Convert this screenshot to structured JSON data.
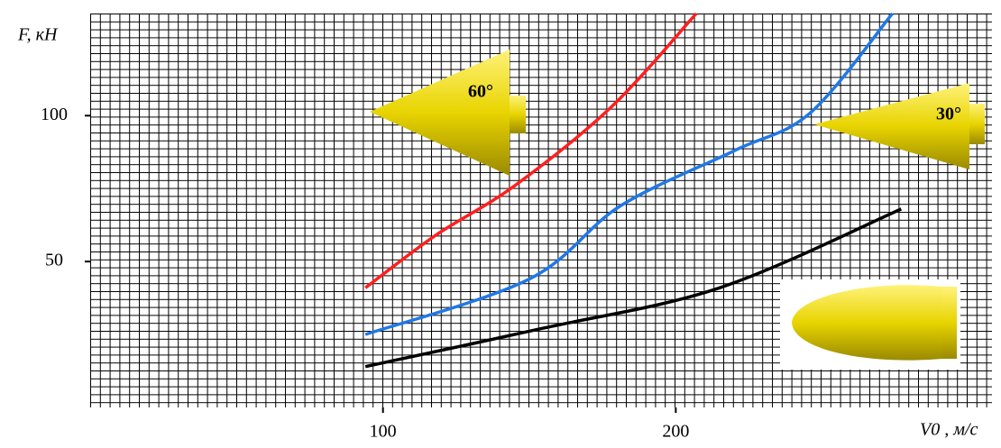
{
  "chart_data": {
    "type": "line",
    "y_label": "F, кН",
    "x_label": "V0 , м/с",
    "xlim": [
      0,
      308
    ],
    "ylim": [
      0,
      135
    ],
    "xticks": [
      100,
      200
    ],
    "yticks": [
      50,
      100
    ],
    "grid": true,
    "annotations": [
      "60°",
      "30°"
    ],
    "series": [
      {
        "color": "#ff1f1f",
        "x": [
          94,
          118,
          145,
          178,
          207
        ],
        "values": [
          41,
          59,
          76,
          103,
          135
        ]
      },
      {
        "color": "#1f78e6",
        "x": [
          94,
          150,
          181,
          220,
          246,
          274
        ],
        "values": [
          25,
          44,
          69,
          88,
          101,
          135
        ]
      },
      {
        "color": "#000000",
        "x": [
          94,
          154,
          215,
          277
        ],
        "values": [
          14,
          27,
          41,
          68
        ]
      }
    ]
  }
}
